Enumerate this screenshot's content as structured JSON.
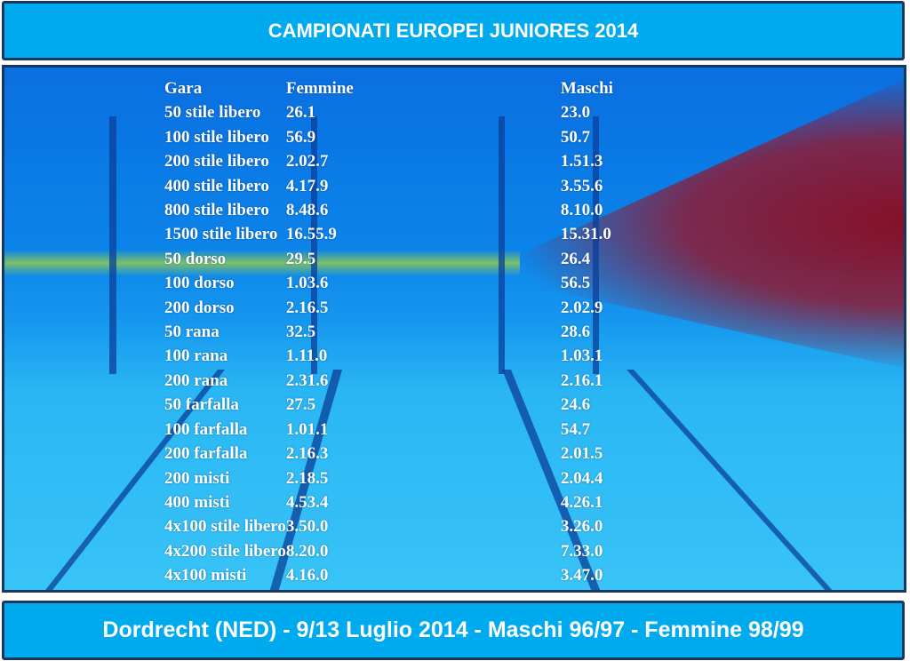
{
  "header": {
    "title": "CAMPIONATI EUROPEI JUNIORES 2014"
  },
  "table": {
    "columns": [
      "Gara",
      "Femmine",
      "Maschi"
    ],
    "rows": [
      [
        "50 stile  libero",
        "26.1",
        "23.0"
      ],
      [
        "100 stile libero",
        "56.9",
        "50.7"
      ],
      [
        "200 stile libero",
        "2.02.7",
        "1.51.3"
      ],
      [
        "400 stile libero",
        "4.17.9",
        "3.55.6"
      ],
      [
        "800 stile libero",
        "8.48.6",
        "8.10.0"
      ],
      [
        "1500 stile libero",
        "16.55.9",
        "15.31.0"
      ],
      [
        "50 dorso",
        "29.5",
        "26.4"
      ],
      [
        "100 dorso",
        "1.03.6",
        "56.5"
      ],
      [
        "200 dorso",
        "2.16.5",
        "2.02.9"
      ],
      [
        "50 rana",
        "32.5",
        "28.6"
      ],
      [
        "100 rana",
        "1.11.0",
        "1.03.1"
      ],
      [
        "200 rana",
        "2.31.6",
        "2.16.1"
      ],
      [
        "50 farfalla",
        "27.5",
        "24.6"
      ],
      [
        "100 farfalla",
        "1.01.1",
        "54.7"
      ],
      [
        "200 farfalla",
        "2.16.3",
        "2.01.5"
      ],
      [
        "200 misti",
        "2.18.5",
        "2.04.4"
      ],
      [
        "400 misti",
        "4.53.4",
        "4.26.1"
      ],
      [
        "4x100 stile libero",
        "3.50.0",
        "3.26.0"
      ],
      [
        "4x200 stile libero",
        "8.20.0",
        "7.33.0"
      ],
      [
        "4x100 misti",
        "4.16.0",
        "3.47.0"
      ]
    ]
  },
  "footer": {
    "text": "Dordrecht (NED) - 9/13 Luglio 2014 - Maschi 96/97 - Femmine 98/99"
  },
  "colors": {
    "bar": "#00aaee",
    "border": "#17375e",
    "text": "#ffffff"
  }
}
